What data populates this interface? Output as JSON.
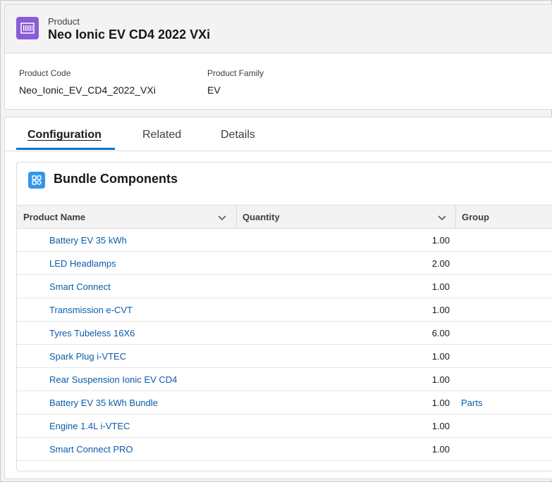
{
  "header": {
    "type_label": "Product",
    "title": "Neo Ionic EV CD4 2022 VXi",
    "icon": "product-barcode-icon",
    "fields": [
      {
        "label": "Product Code",
        "value": "Neo_Ionic_EV_CD4_2022_VXi"
      },
      {
        "label": "Product Family",
        "value": "EV"
      }
    ]
  },
  "tabs": [
    {
      "label": "Configuration",
      "active": true
    },
    {
      "label": "Related",
      "active": false
    },
    {
      "label": "Details",
      "active": false
    }
  ],
  "bundle": {
    "title": "Bundle Components",
    "icon": "bundle-components-icon",
    "columns": [
      {
        "label": "Product Name"
      },
      {
        "label": "Quantity"
      },
      {
        "label": "Group"
      }
    ],
    "rows": [
      {
        "name": "Battery EV 35 kWh",
        "qty": "1.00",
        "group": ""
      },
      {
        "name": "LED Headlamps",
        "qty": "2.00",
        "group": ""
      },
      {
        "name": "Smart Connect",
        "qty": "1.00",
        "group": ""
      },
      {
        "name": "Transmission e-CVT",
        "qty": "1.00",
        "group": ""
      },
      {
        "name": "Tyres Tubeless 16X6",
        "qty": "6.00",
        "group": ""
      },
      {
        "name": "Spark Plug i-VTEC",
        "qty": "1.00",
        "group": ""
      },
      {
        "name": "Rear Suspension Ionic EV CD4",
        "qty": "1.00",
        "group": ""
      },
      {
        "name": "Battery EV 35 kWh Bundle",
        "qty": "1.00",
        "group": "Parts"
      },
      {
        "name": "Engine 1.4L i-VTEC",
        "qty": "1.00",
        "group": ""
      },
      {
        "name": "Smart Connect PRO",
        "qty": "1.00",
        "group": ""
      }
    ]
  },
  "colors": {
    "accent": "#0176d3",
    "link": "#0b5cab",
    "product_icon_bg": "#8a5cd6",
    "bundle_icon_bg": "#3296ed"
  }
}
